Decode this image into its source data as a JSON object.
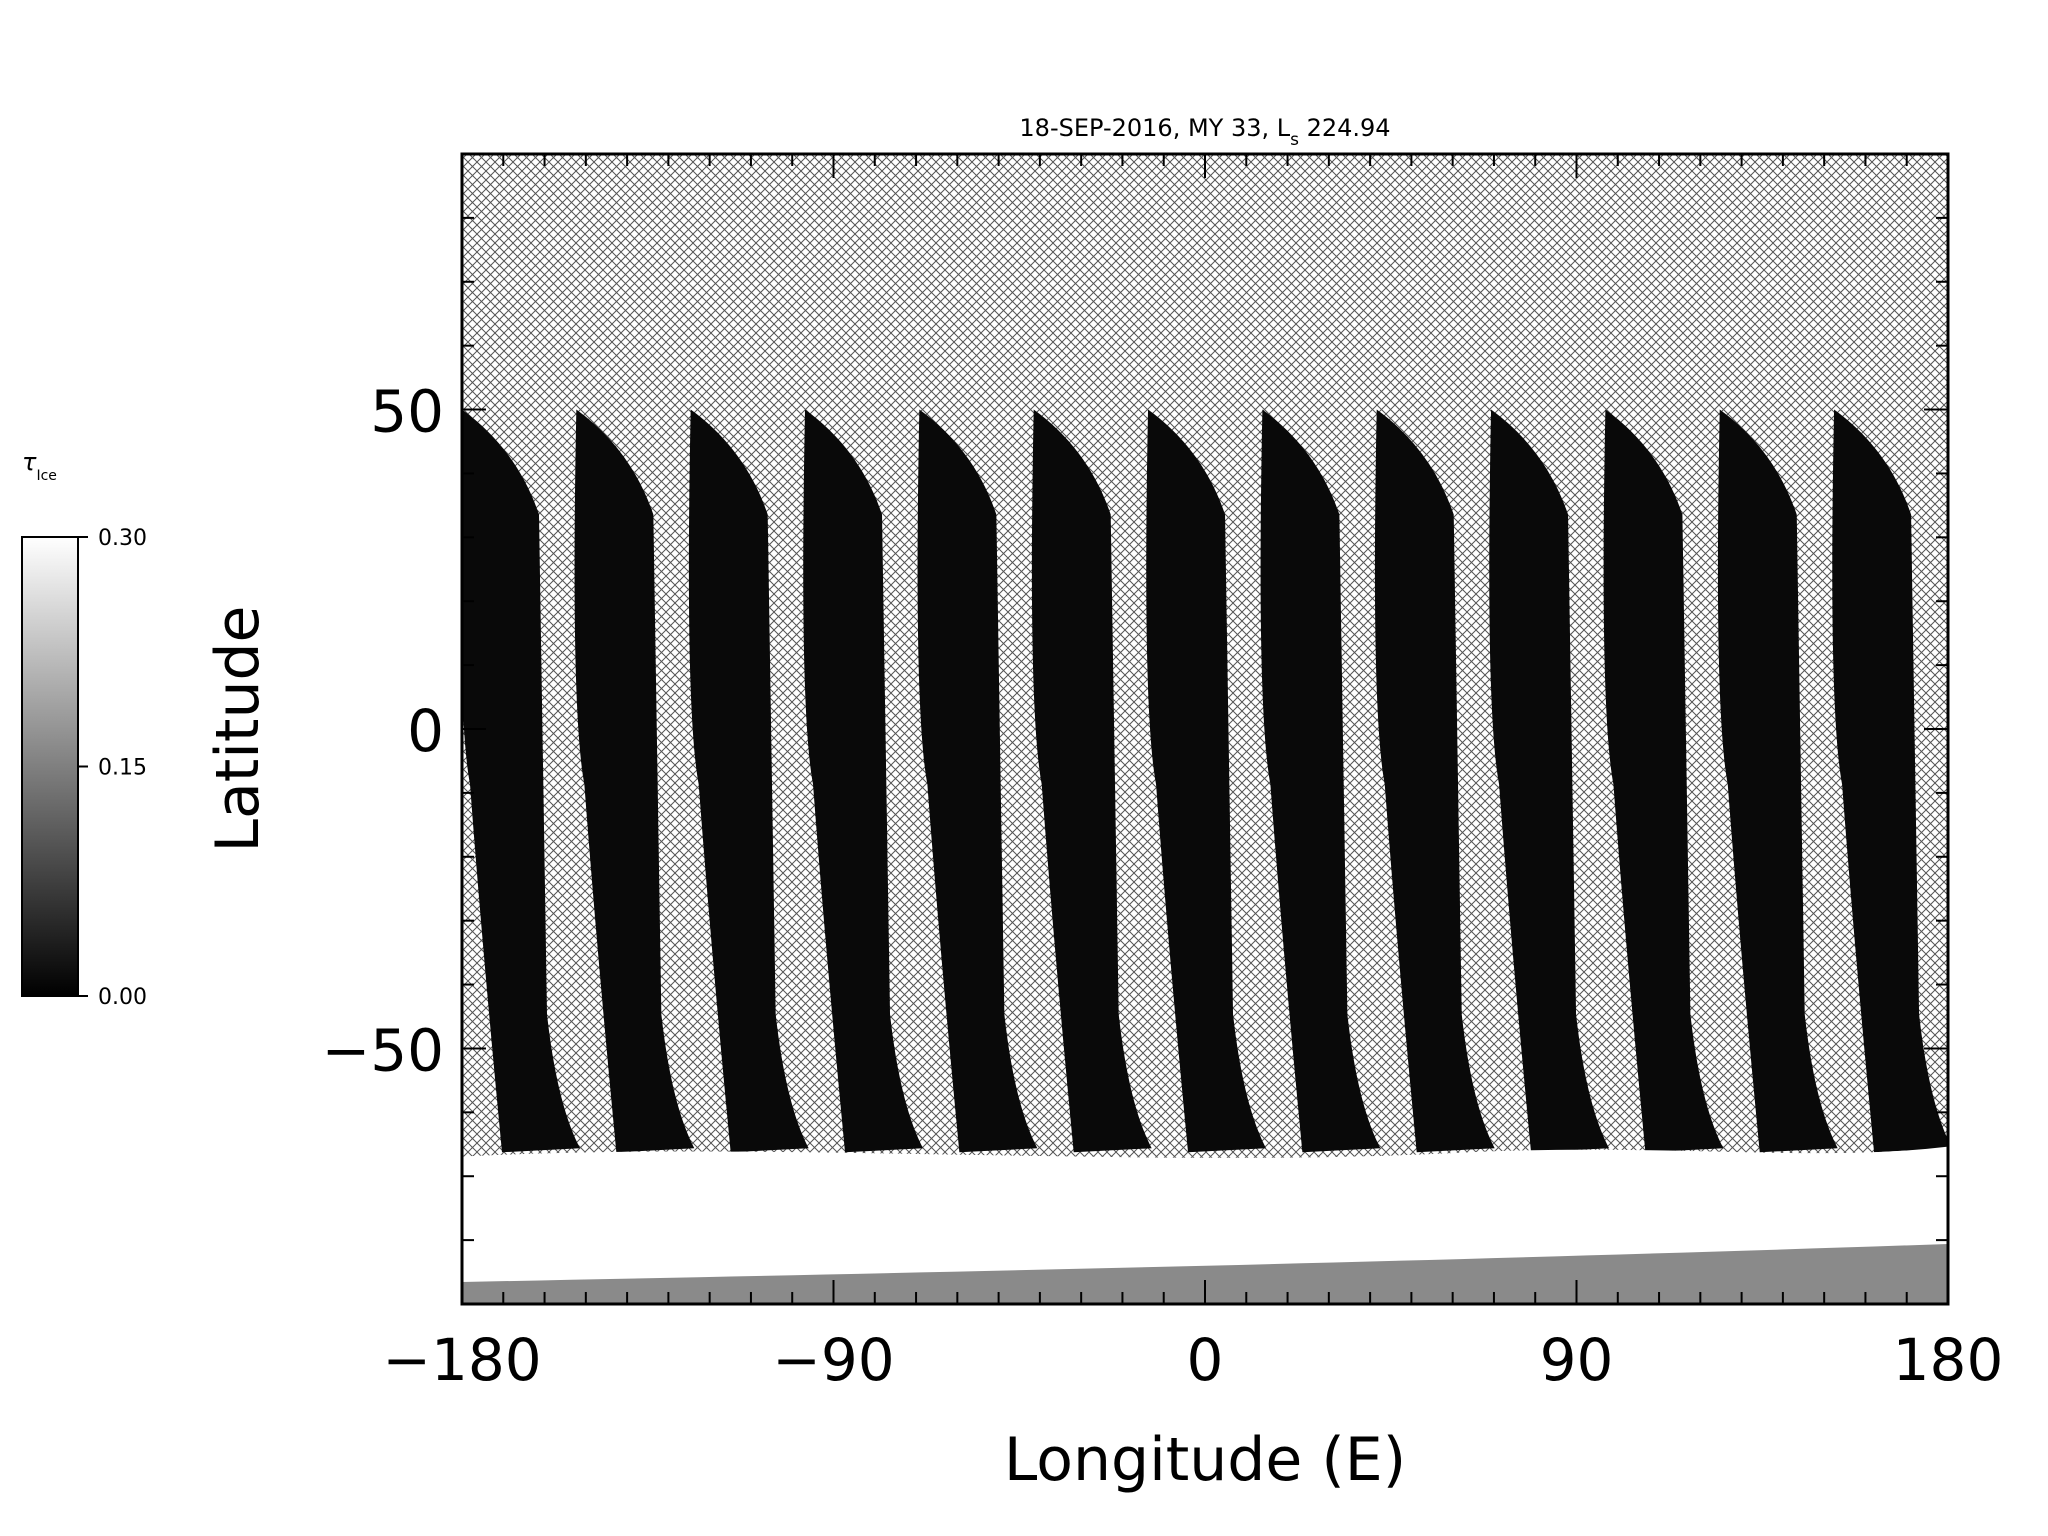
{
  "chart_data": {
    "type": "heatmap",
    "title": {
      "main": "18-SEP-2016, MY 33,  L",
      "subscript": "s",
      "value": " 224.94"
    },
    "xlabel": "Longitude (E)",
    "ylabel": "Latitude",
    "xlim": [
      -180,
      180
    ],
    "ylim": [
      -90,
      90
    ],
    "xticks": [
      -180,
      -90,
      0,
      90,
      180
    ],
    "xtick_labels": [
      "−180",
      "−90",
      "0",
      "90",
      "180"
    ],
    "yticks": [
      -50,
      0,
      50
    ],
    "ytick_labels": [
      "−50",
      "0",
      "50"
    ],
    "x_minor_step": 10,
    "y_minor_step": 10,
    "grid": false,
    "no_data_fill": "cross-hatch",
    "colorbar": {
      "label_symbol": "τ",
      "label_subscript": "Ice",
      "range": [
        0.0,
        0.3
      ],
      "ticks": [
        "0.00",
        "0.15",
        "0.30"
      ],
      "colormap": "grayscale",
      "low_color": "#000000",
      "high_color": "#ffffff",
      "placement": "left"
    },
    "swaths": {
      "count": 13,
      "start_longitude": -180,
      "spacing_degrees": 27.7,
      "north_edge_latitude": 50,
      "south_edge_latitude": -65,
      "typical_value": 0.01
    },
    "south_polar_cap": {
      "lat_range": [
        -90,
        -66
      ],
      "typical_value": 0.3
    }
  }
}
